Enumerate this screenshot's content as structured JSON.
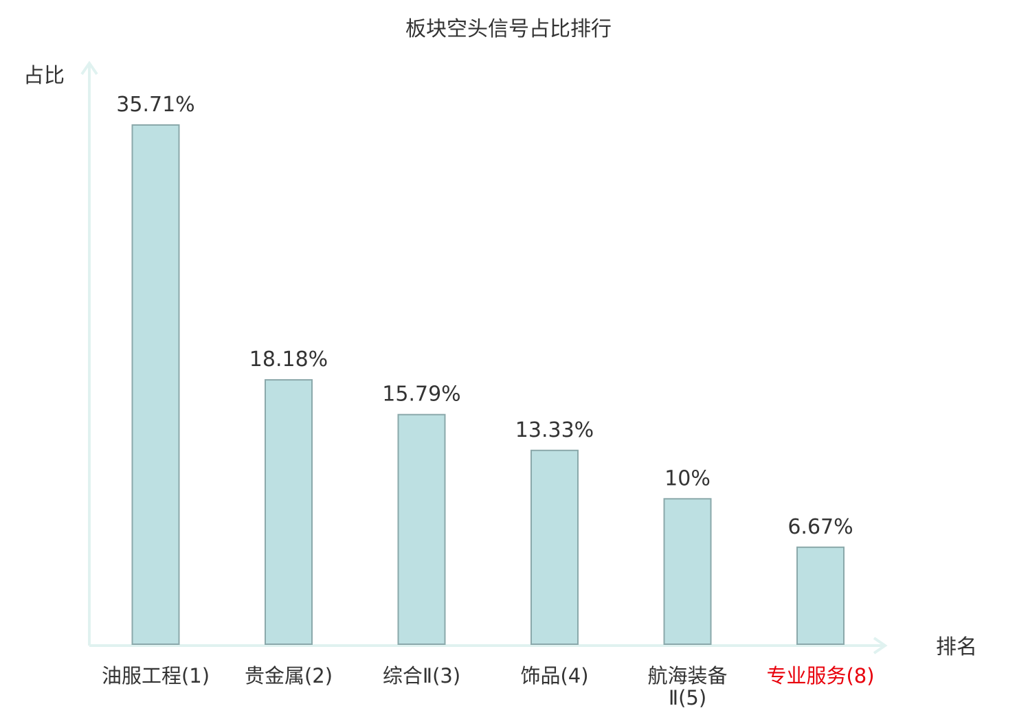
{
  "chart_data": {
    "type": "bar",
    "title": "板块空头信号占比排行",
    "ylabel": "占比",
    "xlabel": "排名",
    "categories": [
      "油服工程(1)",
      "贵金属(2)",
      "综合Ⅱ(3)",
      "饰品(4)",
      "航海装备Ⅱ(5)",
      "专业服务(8)"
    ],
    "values": [
      35.71,
      18.18,
      15.79,
      13.33,
      10,
      6.67
    ],
    "value_labels": [
      "35.71%",
      "18.18%",
      "15.79%",
      "13.33%",
      "10%",
      "6.67%"
    ],
    "highlighted_category": "专业服务(8)",
    "ylim": [
      0,
      37.5
    ],
    "grid": false,
    "legend": "none",
    "colors": {
      "bar_fill": "#bde0e2",
      "bar_stroke": "#8aa8aa",
      "axis": "#e0f2f0",
      "text": "#333333",
      "highlight_text": "#e8000b"
    }
  }
}
